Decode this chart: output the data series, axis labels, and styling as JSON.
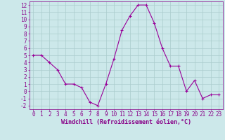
{
  "x": [
    0,
    1,
    2,
    3,
    4,
    5,
    6,
    7,
    8,
    9,
    10,
    11,
    12,
    13,
    14,
    15,
    16,
    17,
    18,
    19,
    20,
    21,
    22,
    23
  ],
  "y": [
    5,
    5,
    4,
    3,
    1,
    1,
    0.5,
    -1.5,
    -2,
    1,
    4.5,
    8.5,
    10.5,
    12,
    12,
    9.5,
    6,
    3.5,
    3.5,
    0,
    1.5,
    -1,
    -0.5,
    -0.5
  ],
  "line_color": "#990099",
  "marker": "+",
  "marker_size": 3,
  "background_color": "#cce8ea",
  "grid_color": "#aacccc",
  "xlabel": "Windchill (Refroidissement éolien,°C)",
  "xlim": [
    -0.5,
    23.5
  ],
  "ylim": [
    -2.5,
    12.5
  ],
  "yticks": [
    -2,
    -1,
    0,
    1,
    2,
    3,
    4,
    5,
    6,
    7,
    8,
    9,
    10,
    11,
    12
  ],
  "xticks": [
    0,
    1,
    2,
    3,
    4,
    5,
    6,
    7,
    8,
    9,
    10,
    11,
    12,
    13,
    14,
    15,
    16,
    17,
    18,
    19,
    20,
    21,
    22,
    23
  ],
  "tick_color": "#880088",
  "axis_color": "#880088",
  "label_color": "#880088",
  "line_width": 0.8,
  "marker_edge_width": 0.8,
  "tick_fontsize": 5.5,
  "xlabel_fontsize": 6.0
}
